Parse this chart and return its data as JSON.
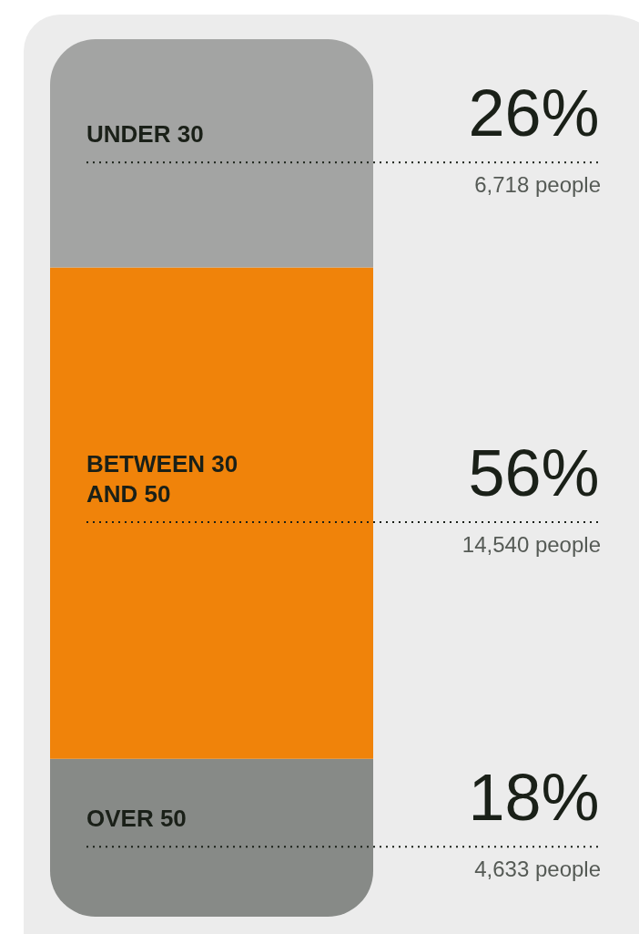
{
  "chart_data": {
    "type": "bar",
    "stacked": true,
    "categories": [
      null
    ],
    "series": [
      {
        "name": "OVER 50",
        "color": "#878a87",
        "values": [
          18
        ],
        "value_labels": [
          "18%"
        ]
      },
      {
        "name": "BETWEEN 30\nAND 50",
        "color": "#f0830a",
        "values": [
          56
        ],
        "value_labels": [
          "56%"
        ]
      },
      {
        "name": "UNDER 30",
        "color": "#a3a4a3",
        "values": [
          26
        ],
        "value_labels": [
          "26%"
        ]
      }
    ],
    "annotations": [
      "4,633 people",
      "14,540 people",
      "6,718 people"
    ],
    "ylim": [
      0,
      100
    ],
    "tick_labels": false
  }
}
